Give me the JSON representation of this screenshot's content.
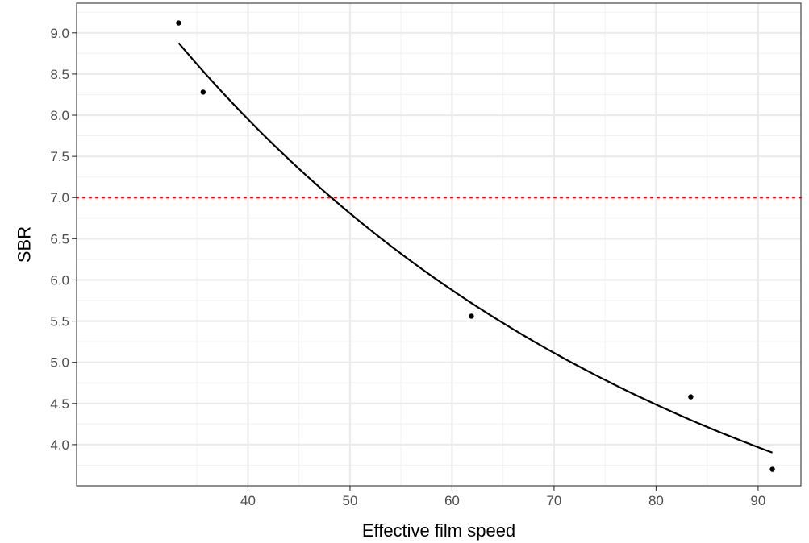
{
  "chart_data": {
    "type": "scatter",
    "title": "",
    "xlabel": "Effective film speed",
    "ylabel": "SBR",
    "xlim": [
      23.2,
      94.2
    ],
    "ylim": [
      3.5,
      9.36
    ],
    "x_ticks": [
      40,
      50,
      60,
      70,
      80,
      90
    ],
    "x_tick_labels": [
      "40",
      "50",
      "60",
      "70",
      "80",
      "90"
    ],
    "y_ticks": [
      4.0,
      4.5,
      5.0,
      5.5,
      6.0,
      6.5,
      7.0,
      7.5,
      8.0,
      8.5,
      9.0
    ],
    "y_tick_labels": [
      "4.0",
      "4.5",
      "5.0",
      "5.5",
      "6.0",
      "6.5",
      "7.0",
      "7.5",
      "8.0",
      "8.5",
      "9.0"
    ],
    "grid": true,
    "points": {
      "x": [
        33.2,
        35.6,
        61.9,
        83.4,
        91.4
      ],
      "y": [
        9.12,
        8.28,
        5.56,
        4.58,
        3.7
      ],
      "color": "#000000"
    },
    "fit_curve": {
      "x": [
        33.2,
        40,
        48,
        55,
        62,
        70,
        78,
        85,
        91.4
      ],
      "y": [
        8.85,
        7.97,
        7.03,
        6.32,
        5.72,
        5.11,
        4.59,
        4.2,
        3.92
      ],
      "color": "#000000"
    },
    "reference_line": {
      "y": 7.0,
      "style": "dotted",
      "color": "#ff0000"
    }
  }
}
